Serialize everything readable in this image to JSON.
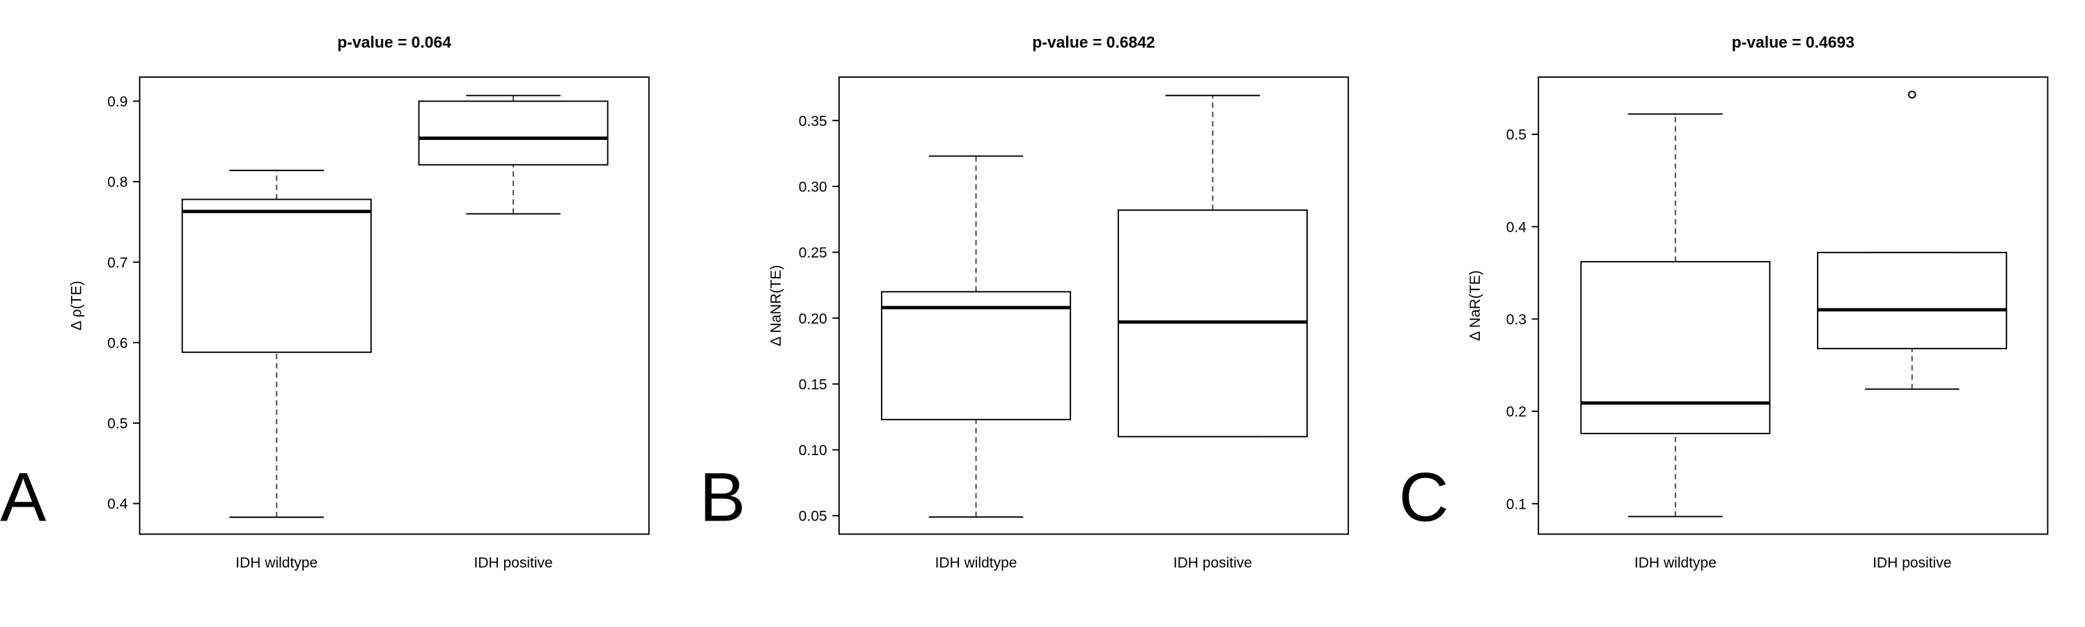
{
  "chart_data": [
    {
      "type": "box",
      "panel_label": "A",
      "title": "p-value = 0.064",
      "ylabel": "Δ ρ(TE)",
      "categories": [
        "IDH wildtype",
        "IDH positive"
      ],
      "whisker_low": [
        0.383,
        0.76
      ],
      "q1": [
        0.588,
        0.821
      ],
      "median": [
        0.763,
        0.854
      ],
      "q3": [
        0.778,
        0.9
      ],
      "whisker_high": [
        0.814,
        0.907
      ],
      "outliers": [
        [],
        []
      ],
      "ylim": [
        0.362,
        0.93
      ],
      "yticks": [
        0.4,
        0.5,
        0.6,
        0.7,
        0.8,
        0.9
      ]
    },
    {
      "type": "box",
      "panel_label": "B",
      "title": "p-value = 0.6842",
      "ylabel": "Δ NaNR(TE)",
      "categories": [
        "IDH wildtype",
        "IDH positive"
      ],
      "whisker_low": [
        0.049,
        0.11
      ],
      "q1": [
        0.123,
        0.11
      ],
      "median": [
        0.208,
        0.197
      ],
      "q3": [
        0.22,
        0.282
      ],
      "whisker_high": [
        0.323,
        0.369
      ],
      "outliers": [
        [],
        []
      ],
      "ylim": [
        0.036,
        0.383
      ],
      "yticks": [
        0.05,
        {
          "value": 0.1,
          "label": "0.10"
        },
        0.15,
        {
          "value": 0.2,
          "label": "0.20"
        },
        0.25,
        {
          "value": 0.3,
          "label": "0.30"
        },
        0.35
      ]
    },
    {
      "type": "box",
      "panel_label": "C",
      "title": "p-value = 0.4693",
      "ylabel": "Δ NaR(TE)",
      "categories": [
        "IDH wildtype",
        "IDH positive"
      ],
      "whisker_low": [
        0.086,
        0.224
      ],
      "q1": [
        0.176,
        0.268
      ],
      "median": [
        0.209,
        0.31
      ],
      "q3": [
        0.362,
        0.372
      ],
      "whisker_high": [
        0.522,
        0.372
      ],
      "outliers": [
        [],
        [
          0.543
        ]
      ],
      "ylim": [
        0.067,
        0.562
      ],
      "yticks": [
        0.1,
        0.2,
        0.3,
        0.4,
        0.5
      ]
    }
  ]
}
